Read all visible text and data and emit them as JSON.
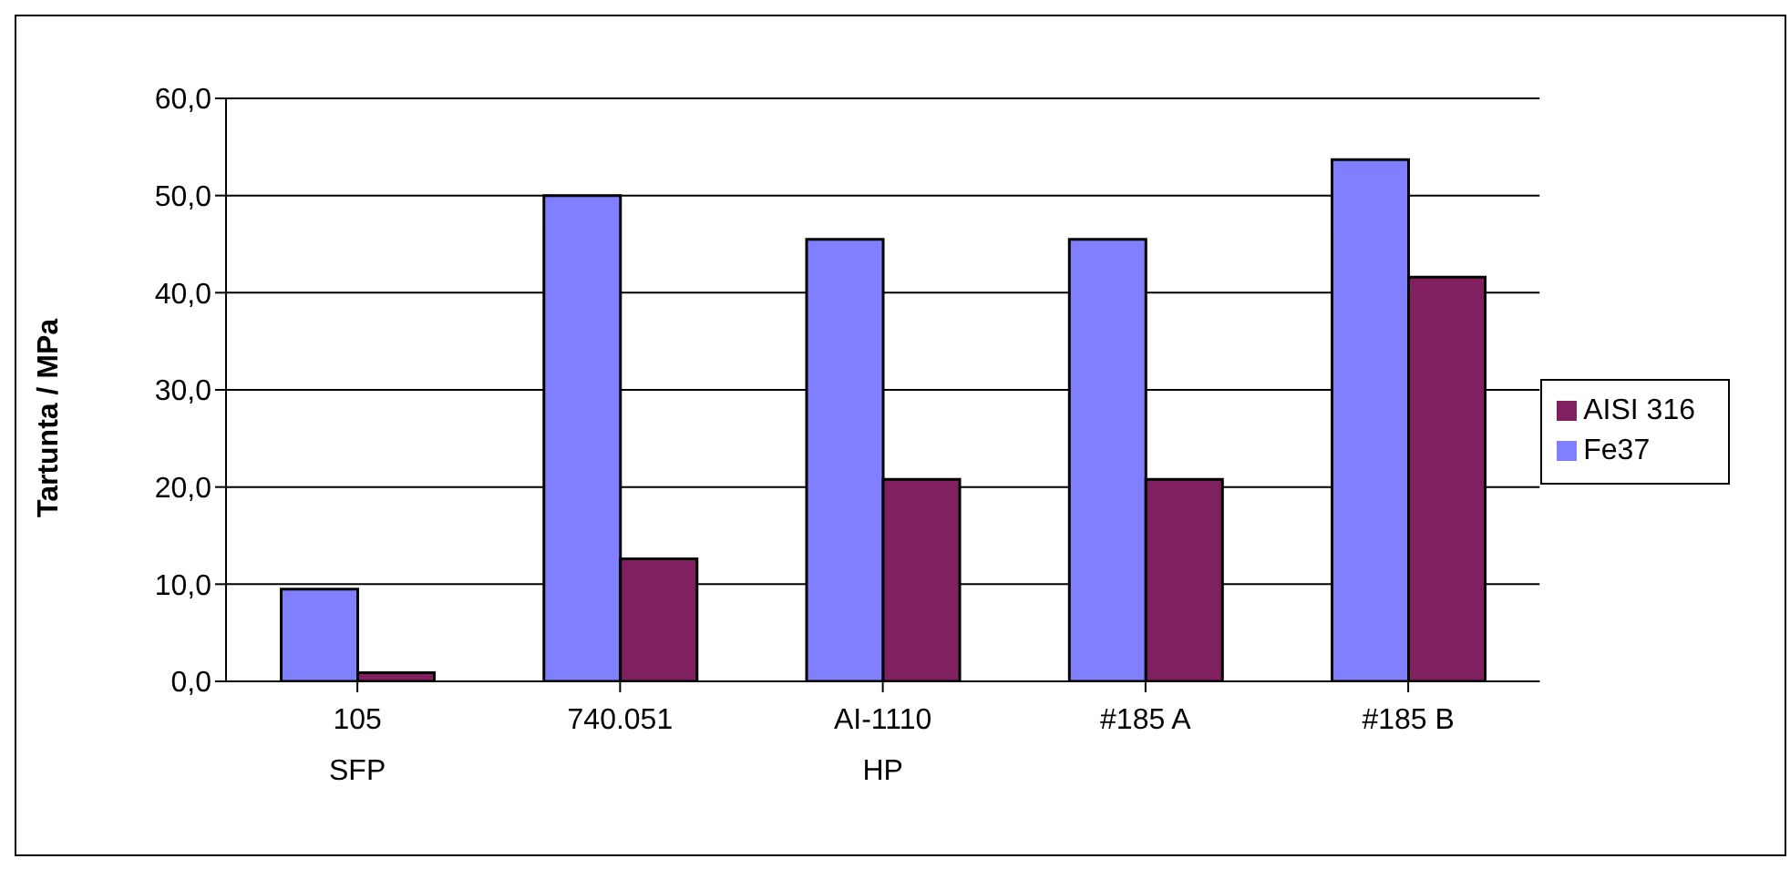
{
  "chart_data": {
    "type": "bar",
    "ylabel": "Tartunta / MPa",
    "categories": [
      "105\nSFP",
      "740.051",
      "AI-1110\nHP",
      "#185 A",
      "#185 B"
    ],
    "series": [
      {
        "name": "Fe37",
        "color": "#8080ff",
        "values": [
          9.5,
          50,
          45.5,
          45.5,
          53.7
        ]
      },
      {
        "name": "AISI 316",
        "color": "#802060",
        "values": [
          0.9,
          12.6,
          20.8,
          20.8,
          41.6
        ]
      }
    ],
    "ylim": [
      0,
      60
    ],
    "yticks": [
      {
        "value": 0,
        "label": "0,0"
      },
      {
        "value": 10,
        "label": "10,0"
      },
      {
        "value": 20,
        "label": "20,0"
      },
      {
        "value": 30,
        "label": "30,0"
      },
      {
        "value": 40,
        "label": "40,0"
      },
      {
        "value": 50,
        "label": "50,0"
      },
      {
        "value": 60,
        "label": "60,0"
      }
    ],
    "grid": "y",
    "legend": "right"
  }
}
